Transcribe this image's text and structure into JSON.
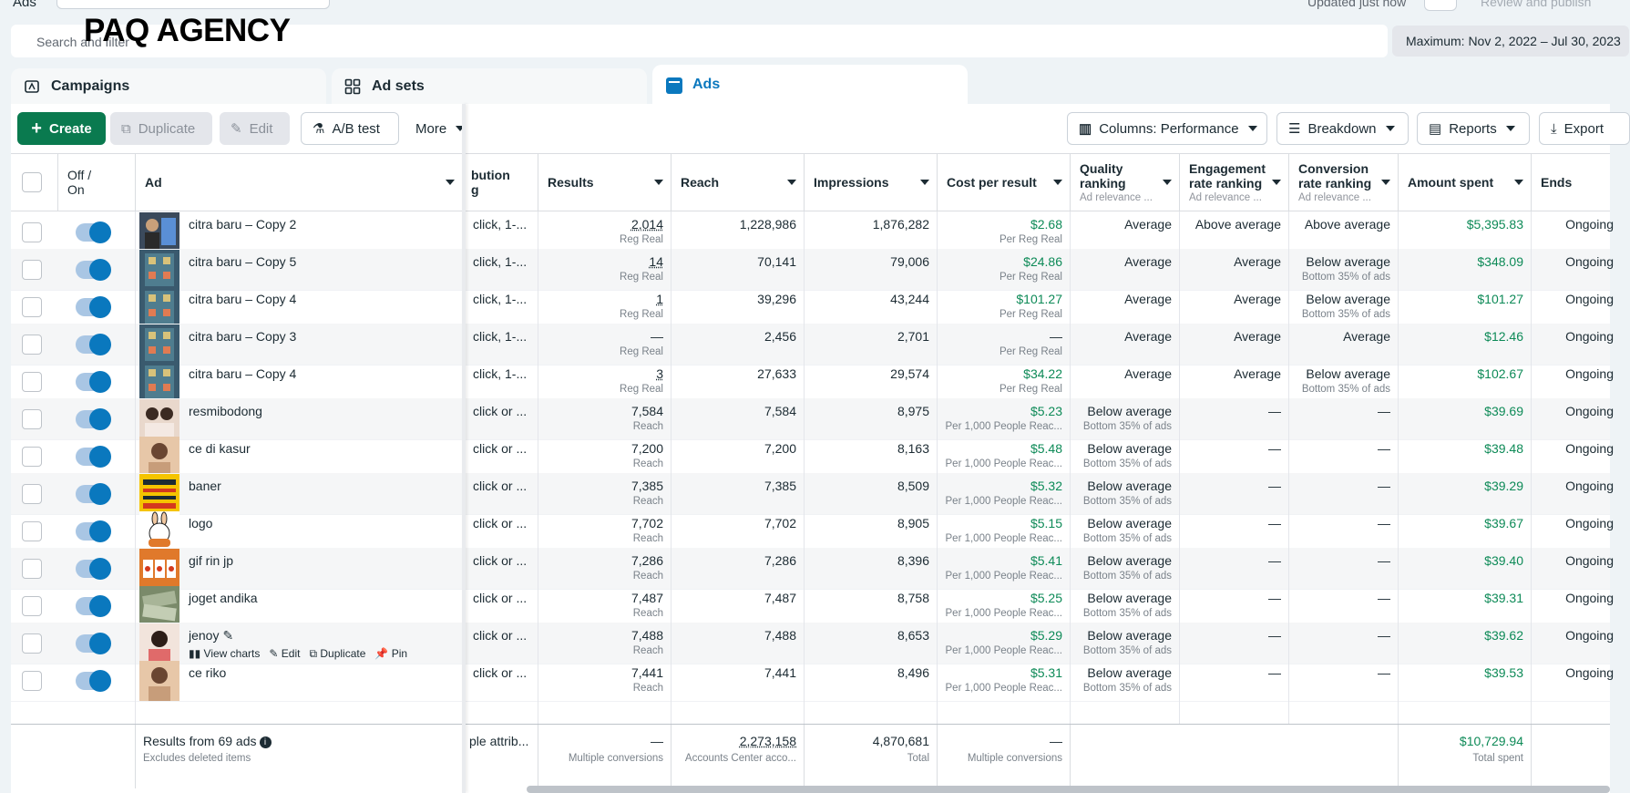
{
  "top": {
    "section_label": "Ads",
    "updated_text": "Updated just now",
    "review_label": "Review and publish"
  },
  "brand": "PAQ AGENCY",
  "search": {
    "placeholder": "Search and filter"
  },
  "date_range": "Maximum: Nov 2, 2022 – Jul 30, 2023",
  "tabs": [
    {
      "label": "Campaigns",
      "icon": "campaign-icon"
    },
    {
      "label": "Ad sets",
      "icon": "adsets-grid-icon"
    },
    {
      "label": "Ads",
      "icon": "ads-icon"
    }
  ],
  "toolbar": {
    "create": "Create",
    "duplicate": "Duplicate",
    "edit": "Edit",
    "ab_test": "A/B test",
    "more": "More",
    "columns": "Columns: Performance",
    "breakdown": "Breakdown",
    "reports": "Reports",
    "export": "Export"
  },
  "columns": {
    "off_on_1": "Off /",
    "off_on_2": "On",
    "ad": "Ad",
    "attribution_1": "bution",
    "attribution_2": "g",
    "results": "Results",
    "reach": "Reach",
    "impressions": "Impressions",
    "cost_per_result": "Cost per result",
    "quality_1": "Quality",
    "quality_2": "ranking",
    "quality_sub": "Ad relevance ...",
    "engagement_1": "Engagement",
    "engagement_2": "rate ranking",
    "engagement_sub": "Ad relevance ...",
    "conversion_1": "Conversion",
    "conversion_2": "rate ranking",
    "conversion_sub": "Ad relevance ...",
    "amount_spent": "Amount spent",
    "ends": "Ends"
  },
  "rows": [
    {
      "name": "citra baru – Copy 2",
      "thumb": "thumb-person-blue",
      "attr": "click, 1-...",
      "results": "2,014",
      "results_sub": "Reg Real",
      "reach": "1,228,986",
      "impressions": "1,876,282",
      "cpr": "$2.68",
      "cpr_sub": "Per Reg Real",
      "quality": "Average",
      "quality_sub": "",
      "engagement": "Above average",
      "conversion": "Above average",
      "conversion_sub": "",
      "spent": "$5,395.83",
      "ends": "Ongoing"
    },
    {
      "name": "citra baru – Copy 5",
      "thumb": "thumb-game-board",
      "attr": "click, 1-...",
      "results": "14",
      "results_sub": "Reg Real",
      "reach": "70,141",
      "impressions": "79,006",
      "cpr": "$24.86",
      "cpr_sub": "Per Reg Real",
      "quality": "Average",
      "quality_sub": "",
      "engagement": "Average",
      "conversion": "Below average",
      "conversion_sub": "Bottom 35% of ads",
      "spent": "$348.09",
      "ends": "Ongoing"
    },
    {
      "name": "citra baru – Copy 4",
      "thumb": "thumb-game-board",
      "attr": "click, 1-...",
      "results": "1",
      "results_sub": "Reg Real",
      "reach": "39,296",
      "impressions": "43,244",
      "cpr": "$101.27",
      "cpr_sub": "Per Reg Real",
      "quality": "Average",
      "quality_sub": "",
      "engagement": "Average",
      "conversion": "Below average",
      "conversion_sub": "Bottom 35% of ads",
      "spent": "$101.27",
      "ends": "Ongoing"
    },
    {
      "name": "citra baru – Copy 3",
      "thumb": "thumb-game-board",
      "attr": "click, 1-...",
      "results": "—",
      "results_sub": "Reg Real",
      "reach": "2,456",
      "impressions": "2,701",
      "cpr": "—",
      "cpr_sub": "Per Reg Real",
      "quality": "Average",
      "quality_sub": "",
      "engagement": "Average",
      "conversion": "Average",
      "conversion_sub": "",
      "spent": "$12.46",
      "ends": "Ongoing"
    },
    {
      "name": "citra baru – Copy 4",
      "thumb": "thumb-game-board",
      "attr": "click, 1-...",
      "results": "3",
      "results_sub": "Reg Real",
      "reach": "27,633",
      "impressions": "29,574",
      "cpr": "$34.22",
      "cpr_sub": "Per Reg Real",
      "quality": "Average",
      "quality_sub": "",
      "engagement": "Average",
      "conversion": "Below average",
      "conversion_sub": "Bottom 35% of ads",
      "spent": "$102.67",
      "ends": "Ongoing"
    },
    {
      "name": "resmibodong",
      "thumb": "thumb-two-women",
      "attr": "click or ...",
      "results": "7,584",
      "results_sub": "Reach",
      "reach": "7,584",
      "impressions": "8,975",
      "cpr": "$5.23",
      "cpr_sub": "Per 1,000 People Reac...",
      "quality": "Below average",
      "quality_sub": "Bottom 35% of ads",
      "engagement": "—",
      "conversion": "—",
      "conversion_sub": "",
      "spent": "$39.69",
      "ends": "Ongoing"
    },
    {
      "name": "ce di kasur",
      "thumb": "thumb-woman",
      "attr": "click or ...",
      "results": "7,200",
      "results_sub": "Reach",
      "reach": "7,200",
      "impressions": "8,163",
      "cpr": "$5.48",
      "cpr_sub": "Per 1,000 People Reac...",
      "quality": "Below average",
      "quality_sub": "Bottom 35% of ads",
      "engagement": "—",
      "conversion": "—",
      "conversion_sub": "",
      "spent": "$39.48",
      "ends": "Ongoing"
    },
    {
      "name": "baner",
      "thumb": "thumb-yellow-banner",
      "attr": "click or ...",
      "results": "7,385",
      "results_sub": "Reach",
      "reach": "7,385",
      "impressions": "8,509",
      "cpr": "$5.32",
      "cpr_sub": "Per 1,000 People Reac...",
      "quality": "Below average",
      "quality_sub": "Bottom 35% of ads",
      "engagement": "—",
      "conversion": "—",
      "conversion_sub": "",
      "spent": "$39.29",
      "ends": "Ongoing"
    },
    {
      "name": "logo",
      "thumb": "thumb-rabbit-logo",
      "attr": "click or ...",
      "results": "7,702",
      "results_sub": "Reach",
      "reach": "7,702",
      "impressions": "8,905",
      "cpr": "$5.15",
      "cpr_sub": "Per 1,000 People Reac...",
      "quality": "Below average",
      "quality_sub": "Bottom 35% of ads",
      "engagement": "—",
      "conversion": "—",
      "conversion_sub": "",
      "spent": "$39.67",
      "ends": "Ongoing"
    },
    {
      "name": "gif rin jp",
      "thumb": "thumb-orange-slots",
      "attr": "click or ...",
      "results": "7,286",
      "results_sub": "Reach",
      "reach": "7,286",
      "impressions": "8,396",
      "cpr": "$5.41",
      "cpr_sub": "Per 1,000 People Reac...",
      "quality": "Below average",
      "quality_sub": "Bottom 35% of ads",
      "engagement": "—",
      "conversion": "—",
      "conversion_sub": "",
      "spent": "$39.40",
      "ends": "Ongoing"
    },
    {
      "name": "joget andika",
      "thumb": "thumb-money",
      "attr": "click or ...",
      "results": "7,487",
      "results_sub": "Reach",
      "reach": "7,487",
      "impressions": "8,758",
      "cpr": "$5.25",
      "cpr_sub": "Per 1,000 People Reac...",
      "quality": "Below average",
      "quality_sub": "Bottom 35% of ads",
      "engagement": "—",
      "conversion": "—",
      "conversion_sub": "",
      "spent": "$39.31",
      "ends": "Ongoing"
    },
    {
      "name": "jenoy",
      "thumb": "thumb-woman-2",
      "attr": "click or ...",
      "results": "7,488",
      "results_sub": "Reach",
      "reach": "7,488",
      "impressions": "8,653",
      "cpr": "$5.29",
      "cpr_sub": "Per 1,000 People Reac...",
      "quality": "Below average",
      "quality_sub": "Bottom 35% of ads",
      "engagement": "—",
      "conversion": "—",
      "conversion_sub": "",
      "spent": "$39.62",
      "ends": "Ongoing",
      "hover": true
    },
    {
      "name": "ce riko",
      "thumb": "thumb-woman",
      "attr": "click or ...",
      "results": "7,441",
      "results_sub": "Reach",
      "reach": "7,441",
      "impressions": "8,496",
      "cpr": "$5.31",
      "cpr_sub": "Per 1,000 People Reac...",
      "quality": "Below average",
      "quality_sub": "Bottom 35% of ads",
      "engagement": "—",
      "conversion": "—",
      "conversion_sub": "",
      "spent": "$39.53",
      "ends": "Ongoing"
    }
  ],
  "row_actions": {
    "view_charts": "View charts",
    "edit": "Edit",
    "duplicate": "Duplicate",
    "pin": "Pin"
  },
  "footer": {
    "summary": "Results from 69 ads",
    "summary_sub": "Excludes deleted items",
    "attr": "ple attrib...",
    "results": "—",
    "results_sub": "Multiple conversions",
    "reach": "2,273,158",
    "reach_sub": "Accounts Center acco...",
    "impressions": "4,870,681",
    "impressions_sub": "Total",
    "cpr": "—",
    "cpr_sub": "Multiple conversions",
    "spent": "$10,729.94",
    "spent_sub": "Total spent"
  },
  "colors": {
    "create_button": "#0a7a4f",
    "active_tab": "#0a78be",
    "money_green": "#0d8a57",
    "toggle_on": "#0a78be"
  }
}
